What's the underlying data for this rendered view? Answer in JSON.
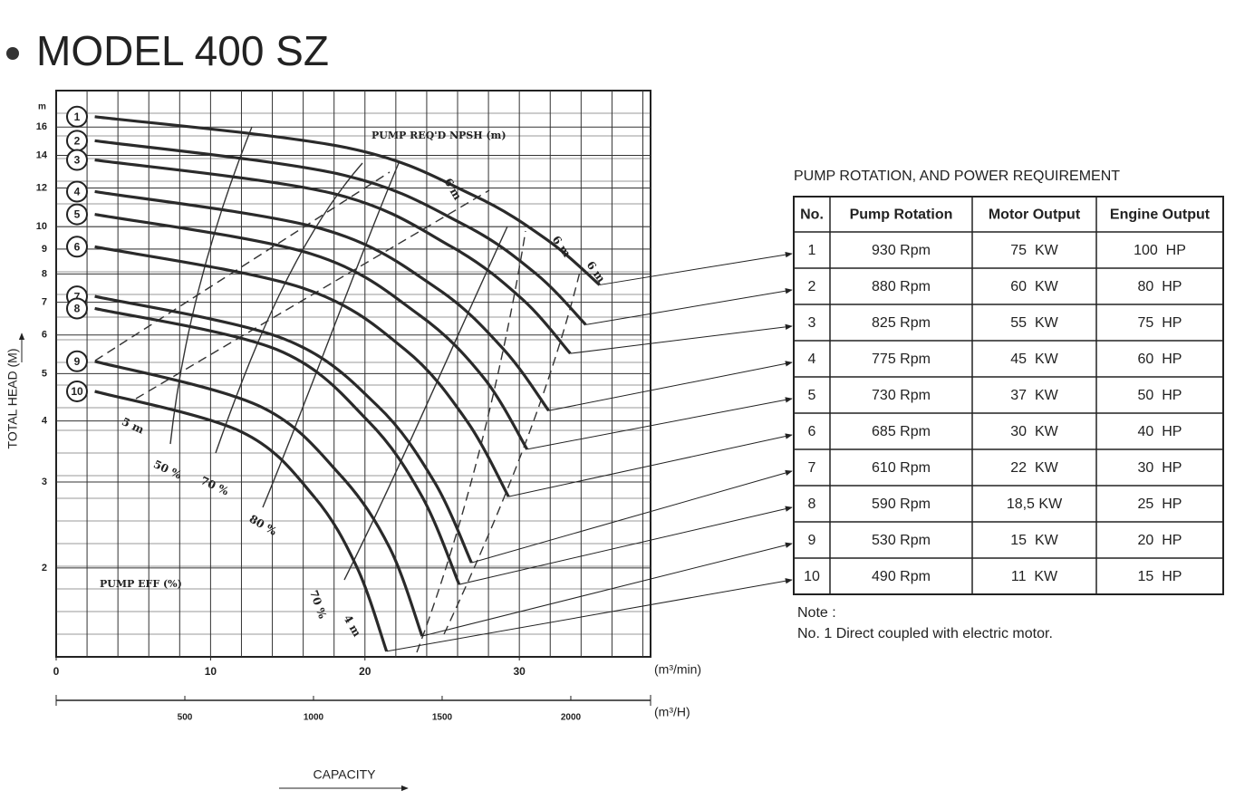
{
  "chart_data": {
    "type": "line",
    "title": "MODEL 400 SZ",
    "y_label": "TOTAL HEAD (M)",
    "y_unit": "m",
    "x_label": "CAPACITY",
    "x_unit": "(m³/min)",
    "x2_unit": "(m³/H)",
    "log_y": true,
    "grid": true,
    "color": "#2a2a2a",
    "xlim": [
      0,
      38.5
    ],
    "xticks": [
      0,
      10,
      20,
      30
    ],
    "x2lim": [
      0,
      2310
    ],
    "x2ticks": [
      500,
      1000,
      1500,
      2000
    ],
    "ylim": [
      1.315,
      19
    ],
    "yticks": [
      2,
      3,
      4,
      5,
      6,
      7,
      8,
      9,
      10,
      12,
      14,
      16
    ],
    "annotations": [
      "PUMP REQ'D NPSH (m)",
      "PUMP EFF (%)",
      "50 %",
      "70 %",
      "80 %",
      "70 %",
      "5 m",
      "6 m",
      "6 m",
      "6 m",
      "4 m"
    ],
    "series": [
      {
        "name": "1",
        "x": [
          2.5,
          18.9,
          27.0,
          31.9,
          35.2
        ],
        "values": [
          16.8,
          14.5,
          11.6,
          9.35,
          7.6
        ]
      },
      {
        "name": "2",
        "x": [
          2.5,
          18.4,
          26.4,
          31.1,
          34.3
        ],
        "values": [
          15.0,
          12.8,
          10.1,
          8.0,
          6.3
        ]
      },
      {
        "name": "3",
        "x": [
          2.5,
          17.9,
          25.6,
          30.2,
          33.3
        ],
        "values": [
          13.7,
          11.7,
          9.1,
          7.1,
          5.5
        ]
      },
      {
        "name": "4",
        "x": [
          2.5,
          17.2,
          24.6,
          29.0,
          31.9
        ],
        "values": [
          11.8,
          9.9,
          7.5,
          5.6,
          4.2
        ]
      },
      {
        "name": "5",
        "x": [
          2.5,
          16.5,
          23.5,
          27.7,
          30.5
        ],
        "values": [
          10.6,
          8.8,
          6.6,
          4.9,
          3.5
        ]
      },
      {
        "name": "6",
        "x": [
          2.5,
          15.9,
          22.6,
          26.6,
          29.3
        ],
        "values": [
          9.1,
          7.5,
          5.6,
          4.0,
          2.8
        ]
      },
      {
        "name": "7",
        "x": [
          2.5,
          14.7,
          20.8,
          24.5,
          26.9
        ],
        "values": [
          7.2,
          5.9,
          4.3,
          3.0,
          2.05
        ]
      },
      {
        "name": "8",
        "x": [
          2.5,
          14.3,
          20.2,
          23.7,
          26.1
        ],
        "values": [
          6.8,
          5.6,
          4.0,
          2.8,
          1.85
        ]
      },
      {
        "name": "9",
        "x": [
          2.5,
          13.1,
          18.4,
          21.6,
          23.7
        ],
        "values": [
          5.3,
          4.3,
          3.1,
          2.2,
          1.45
        ]
      },
      {
        "name": "10",
        "x": [
          2.5,
          12.0,
          16.7,
          19.5,
          21.4
        ],
        "values": [
          4.6,
          3.8,
          2.8,
          2.0,
          1.35
        ]
      }
    ]
  },
  "table": {
    "title": "PUMP ROTATION, AND POWER REQUIREMENT",
    "columns": [
      "No.",
      "Pump Rotation",
      "Motor Output",
      "Engine Output"
    ],
    "rows": [
      [
        "1",
        "930 Rpm",
        "75  KW",
        "100  HP"
      ],
      [
        "2",
        "880 Rpm",
        "60  KW",
        "80  HP"
      ],
      [
        "3",
        "825 Rpm",
        "55  KW",
        "75  HP"
      ],
      [
        "4",
        "775 Rpm",
        "45  KW",
        "60  HP"
      ],
      [
        "5",
        "730 Rpm",
        "37  KW",
        "50  HP"
      ],
      [
        "6",
        "685 Rpm",
        "30  KW",
        "40  HP"
      ],
      [
        "7",
        "610 Rpm",
        "22  KW",
        "30  HP"
      ],
      [
        "8",
        "590 Rpm",
        "18,5 KW",
        "25  HP"
      ],
      [
        "9",
        "530 Rpm",
        "15  KW",
        "20  HP"
      ],
      [
        "10",
        "490 Rpm",
        "11  KW",
        "15  HP"
      ]
    ],
    "note": [
      "Note :",
      "No. 1 Direct coupled with electric motor."
    ]
  }
}
